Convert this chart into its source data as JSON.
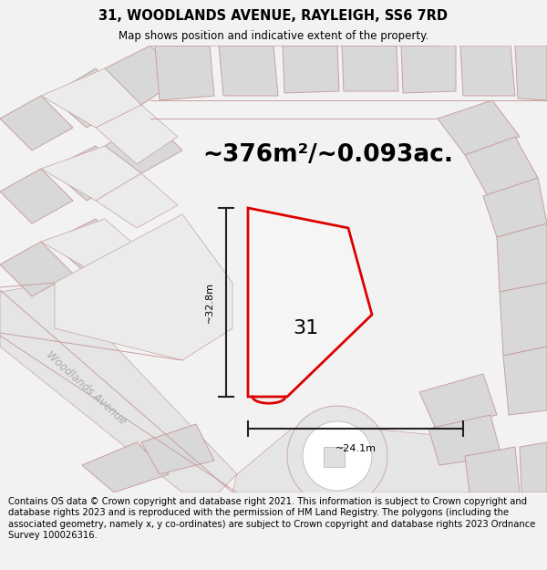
{
  "title_line1": "31, WOODLANDS AVENUE, RAYLEIGH, SS6 7RD",
  "title_line2": "Map shows position and indicative extent of the property.",
  "area_text": "~376m²/~0.093ac.",
  "dim_height": "~32.8m",
  "dim_width": "~24.1m",
  "label_31": "31",
  "street_label": "Woodlands Avenue",
  "footer": "Contains OS data © Crown copyright and database right 2021. This information is subject to Crown copyright and database rights 2023 and is reproduced with the permission of HM Land Registry. The polygons (including the associated geometry, namely x, y co-ordinates) are subject to Crown copyright and database rights 2023 Ordnance Survey 100026316.",
  "bg_color": "#f2f2f2",
  "map_bg": "#ffffff",
  "road_fill_light": "#ebebeb",
  "road_fill_dark": "#d8d8d8",
  "road_stroke": "#c8a0a0",
  "plot_color": "#dd0000",
  "plot_fill": "#f5f5f5",
  "dim_line_color": "#222222",
  "title_fontsize": 10.5,
  "subtitle_fontsize": 8.5,
  "area_fontsize": 19,
  "label_fontsize": 16,
  "street_fontsize": 8.5,
  "dim_fontsize": 8,
  "footer_fontsize": 7.2
}
